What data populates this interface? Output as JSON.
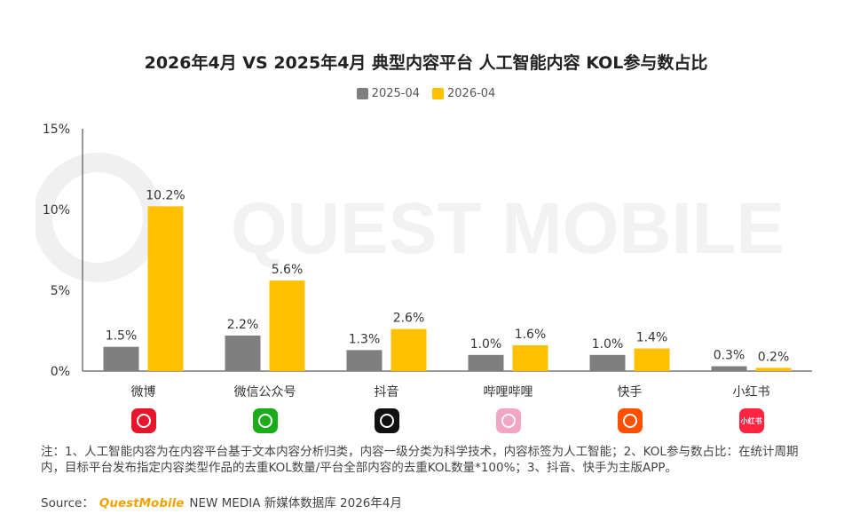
{
  "chart_data": {
    "type": "bar",
    "title": "2026年4月 VS 2025年4月 典型内容平台 人工智能内容 KOL参与数占比",
    "categories": [
      "微博",
      "微信公众号",
      "抖音",
      "哔哩哔哩",
      "快手",
      "小红书"
    ],
    "series": [
      {
        "name": "2025-04",
        "color": "#7f7f7f",
        "values": [
          1.5,
          2.2,
          1.3,
          1.0,
          1.0,
          0.3
        ],
        "labels": [
          "1.5%",
          "2.2%",
          "1.3%",
          "1.0%",
          "1.0%",
          "0.3%"
        ]
      },
      {
        "name": "2026-04",
        "color": "#ffc000",
        "values": [
          10.2,
          5.6,
          2.6,
          1.6,
          1.4,
          0.2
        ],
        "labels": [
          "10.2%",
          "5.6%",
          "2.6%",
          "1.6%",
          "1.4%",
          "0.2%"
        ]
      }
    ],
    "y_ticks": [
      "0%",
      "5%",
      "10%",
      "15%"
    ],
    "ylim": [
      0,
      15
    ],
    "grid": false,
    "legend_position": "top-center"
  },
  "app_icons": [
    {
      "icon": "weibo-icon",
      "color": "#e6162d"
    },
    {
      "icon": "wechat-icon",
      "color": "#1aad19"
    },
    {
      "icon": "douyin-icon",
      "color": "#111111"
    },
    {
      "icon": "bilibili-icon",
      "color": "#f2a6c4"
    },
    {
      "icon": "kuaishou-icon",
      "color": "#ff5000"
    },
    {
      "icon": "xiaohongshu-icon",
      "color": "#ff2442",
      "text": "小红书"
    }
  ],
  "watermark": "QUEST MOBILE",
  "note": "注：1、人工智能内容为在内容平台基于文本内容分析归类，内容一级分类为科学技术，内容标签为人工智能；2、KOL参与数占比：在统计周期内，目标平台发布指定内容类型作品的去重KOL数量/平台全部内容的去重KOL数量*100%；3、抖音、快手为主版APP。",
  "source": {
    "label": "Source：",
    "brand": "QuestMobile",
    "text": "NEW MEDIA 新媒体数据库 2026年4月"
  }
}
